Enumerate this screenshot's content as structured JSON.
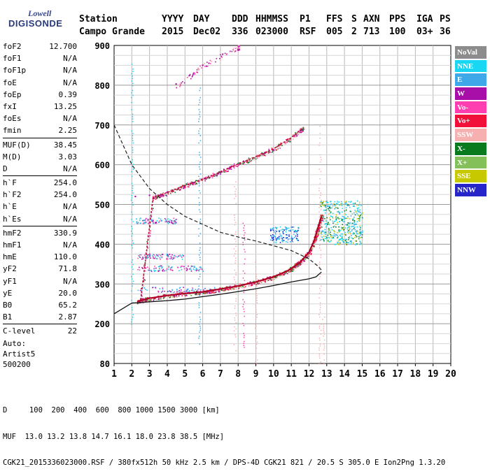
{
  "logo": {
    "line1": "Lowell",
    "line2": "DIGISONDE"
  },
  "header": {
    "row1": [
      "Station",
      "YYYY",
      "DAY",
      "DDD",
      "HHMMSS",
      "P1",
      "FFS",
      "S",
      "AXN",
      "PPS",
      "IGA",
      "PS"
    ],
    "row2": [
      "Campo Grande",
      "2015",
      "Dec02",
      "336",
      "023000",
      "RSF",
      "005",
      "2",
      "713",
      "100",
      "03+",
      "36"
    ]
  },
  "params": [
    {
      "group": [
        {
          "label": "foF2",
          "value": "12.700"
        },
        {
          "label": "foF1",
          "value": "N/A"
        },
        {
          "label": "foF1p",
          "value": "N/A"
        },
        {
          "label": "foE",
          "value": "N/A"
        },
        {
          "label": "foEp",
          "value": "0.39"
        },
        {
          "label": "fxI",
          "value": "13.25"
        },
        {
          "label": "foEs",
          "value": "N/A"
        },
        {
          "label": "fmin",
          "value": "2.25"
        }
      ]
    },
    {
      "group": [
        {
          "label": "MUF(D)",
          "value": "38.45"
        },
        {
          "label": "M(D)",
          "value": "3.03"
        },
        {
          "label": "D",
          "value": "N/A"
        }
      ]
    },
    {
      "group": [
        {
          "label": "h`F",
          "value": "254.0"
        },
        {
          "label": "h`F2",
          "value": "254.0"
        },
        {
          "label": "h`E",
          "value": "N/A"
        },
        {
          "label": "h`Es",
          "value": "N/A"
        }
      ]
    },
    {
      "group": [
        {
          "label": "hmF2",
          "value": "330.9"
        },
        {
          "label": "hmF1",
          "value": "N/A"
        },
        {
          "label": "hmE",
          "value": "110.0"
        },
        {
          "label": "yF2",
          "value": "71.8"
        },
        {
          "label": "yF1",
          "value": "N/A"
        },
        {
          "label": "yE",
          "value": "20.0"
        },
        {
          "label": "B0",
          "value": "65.2"
        },
        {
          "label": "B1",
          "value": "2.87"
        }
      ]
    },
    {
      "group": [
        {
          "label": "C-level",
          "value": "22"
        }
      ]
    }
  ],
  "autoscaling": [
    "Auto:",
    "Artist5",
    "500200"
  ],
  "legend": [
    {
      "label": "NoVal",
      "color": "#8c8c8c"
    },
    {
      "label": "NNE",
      "color": "#19d7f2"
    },
    {
      "label": "E",
      "color": "#3fa8e8"
    },
    {
      "label": "W",
      "color": "#a80fa8"
    },
    {
      "label": "Vo-",
      "color": "#ff3fb0"
    },
    {
      "label": "Vo+",
      "color": "#f0103a"
    },
    {
      "label": "SSW",
      "color": "#f7b0b0"
    },
    {
      "label": "X-",
      "color": "#0a7a1e"
    },
    {
      "label": "X+",
      "color": "#84c05a"
    },
    {
      "label": "SSE",
      "color": "#c8c800"
    },
    {
      "label": "NNW",
      "color": "#2525c8"
    }
  ],
  "footer": {
    "line1": "D     100  200  400  600  800 1000 1500 3000 [km]",
    "line2": "MUF  13.0 13.2 13.8 14.7 16.1 18.0 23.8 38.5 [MHz]",
    "line3": "CGK21_2015336023000.RSF / 380fx512h 50 kHz 2.5 km / DPS-4D CGK21 821 / 20.5 S 305.0 E Ion2Png 1.3.20"
  },
  "chart_data": {
    "type": "scatter",
    "x_ticks": [
      "1",
      "2",
      "3",
      "4",
      "5",
      "6",
      "7",
      "8",
      "9",
      "10",
      "11",
      "12",
      "13",
      "14",
      "15",
      "16",
      "17",
      "18",
      "19",
      "20"
    ],
    "y_ticks": [
      "80",
      "200",
      "300",
      "400",
      "500",
      "600",
      "700",
      "800",
      "900"
    ],
    "xlim": [
      1,
      20
    ],
    "y_scale": "nonlinear",
    "grid": true,
    "y_axis_map": [
      [
        80,
        0
      ],
      [
        200,
        1
      ],
      [
        300,
        2
      ],
      [
        400,
        3
      ],
      [
        500,
        4
      ],
      [
        600,
        5
      ],
      [
        700,
        6
      ],
      [
        800,
        7
      ],
      [
        900,
        8
      ]
    ],
    "series": [
      {
        "name": "Vo+",
        "points": [
          [
            2.3,
            256
          ],
          [
            3.0,
            264
          ],
          [
            4.0,
            271
          ],
          [
            5.0,
            276
          ],
          [
            6.0,
            280
          ],
          [
            7.0,
            287
          ],
          [
            8.0,
            295
          ],
          [
            9.0,
            305
          ],
          [
            10.0,
            318
          ],
          [
            10.8,
            333
          ],
          [
            11.5,
            355
          ],
          [
            12.0,
            380
          ],
          [
            12.3,
            410
          ],
          [
            12.5,
            440
          ],
          [
            12.7,
            470
          ]
        ]
      },
      {
        "name": "X-",
        "points": [
          [
            2.5,
            260
          ],
          [
            3.2,
            518
          ],
          [
            4.0,
            530
          ],
          [
            5.0,
            548
          ],
          [
            6.0,
            563
          ],
          [
            7.0,
            582
          ],
          [
            8.0,
            602
          ],
          [
            9.0,
            620
          ],
          [
            10.0,
            640
          ],
          [
            11.0,
            668
          ],
          [
            11.6,
            690
          ]
        ]
      },
      {
        "name": "W",
        "points": [
          [
            2.2,
            520
          ],
          [
            3.0,
            523
          ],
          [
            4.0,
            531
          ],
          [
            5.5,
            554
          ],
          [
            7.5,
            590
          ],
          [
            9.5,
            630
          ],
          [
            11.5,
            685
          ],
          [
            4.5,
            803
          ],
          [
            6.0,
            850
          ],
          [
            8.0,
            890
          ]
        ]
      }
    ],
    "profile_line": [
      [
        1.0,
        225
      ],
      [
        2.0,
        252
      ],
      [
        3.0,
        255
      ],
      [
        4.0,
        258
      ],
      [
        5.0,
        262
      ],
      [
        6.0,
        268
      ],
      [
        7.0,
        274
      ],
      [
        8.0,
        281
      ],
      [
        9.0,
        288
      ],
      [
        10.0,
        296
      ],
      [
        11.0,
        305
      ],
      [
        12.0,
        313
      ],
      [
        12.4,
        318
      ],
      [
        12.7,
        330
      ]
    ],
    "virtual_height_line": [
      [
        1.0,
        700
      ],
      [
        1.5,
        650
      ],
      [
        2.0,
        600
      ],
      [
        3.0,
        540
      ],
      [
        4.0,
        500
      ],
      [
        5.0,
        470
      ],
      [
        6.0,
        450
      ],
      [
        7.0,
        430
      ],
      [
        8.0,
        418
      ],
      [
        9.0,
        408
      ],
      [
        10.0,
        396
      ],
      [
        11.0,
        384
      ],
      [
        12.0,
        363
      ],
      [
        12.5,
        345
      ],
      [
        12.7,
        335
      ]
    ],
    "cloud_center": [
      14.0,
      455
    ]
  }
}
